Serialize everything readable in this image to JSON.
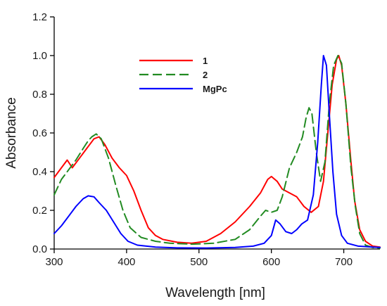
{
  "chart_data": {
    "type": "line",
    "title": "",
    "xlabel": "Wavelength [nm]",
    "ylabel": "Absorbance",
    "xlim": [
      300,
      750
    ],
    "ylim": [
      0,
      1.2
    ],
    "xticks": [
      300,
      400,
      500,
      600,
      700
    ],
    "yticks": [
      0.0,
      0.2,
      0.4,
      0.6,
      0.8,
      1.0,
      1.2
    ],
    "xtick_labels": [
      "300",
      "400",
      "500",
      "600",
      "700"
    ],
    "ytick_labels": [
      "0.0",
      "0.2",
      "0.4",
      "0.6",
      "0.8",
      "1.0",
      "1.2"
    ],
    "grid": false,
    "legend_position": "top-center",
    "series": [
      {
        "name": "1",
        "color": "#ff0000",
        "dash": "solid",
        "points": [
          [
            300,
            0.37
          ],
          [
            310,
            0.42
          ],
          [
            318,
            0.46
          ],
          [
            325,
            0.42
          ],
          [
            335,
            0.47
          ],
          [
            345,
            0.52
          ],
          [
            355,
            0.57
          ],
          [
            362,
            0.58
          ],
          [
            370,
            0.54
          ],
          [
            380,
            0.47
          ],
          [
            390,
            0.42
          ],
          [
            400,
            0.38
          ],
          [
            410,
            0.3
          ],
          [
            420,
            0.2
          ],
          [
            430,
            0.11
          ],
          [
            440,
            0.07
          ],
          [
            450,
            0.05
          ],
          [
            470,
            0.035
          ],
          [
            490,
            0.03
          ],
          [
            510,
            0.04
          ],
          [
            530,
            0.08
          ],
          [
            550,
            0.14
          ],
          [
            570,
            0.22
          ],
          [
            585,
            0.29
          ],
          [
            595,
            0.36
          ],
          [
            600,
            0.375
          ],
          [
            608,
            0.35
          ],
          [
            615,
            0.31
          ],
          [
            625,
            0.29
          ],
          [
            635,
            0.27
          ],
          [
            645,
            0.22
          ],
          [
            655,
            0.19
          ],
          [
            665,
            0.22
          ],
          [
            672,
            0.35
          ],
          [
            678,
            0.6
          ],
          [
            684,
            0.85
          ],
          [
            690,
            0.98
          ],
          [
            693,
            1.0
          ],
          [
            697,
            0.95
          ],
          [
            703,
            0.75
          ],
          [
            710,
            0.45
          ],
          [
            715,
            0.25
          ],
          [
            722,
            0.1
          ],
          [
            730,
            0.04
          ],
          [
            740,
            0.015
          ],
          [
            750,
            0.01
          ]
        ]
      },
      {
        "name": "2",
        "color": "#228b22",
        "dash": "dashed",
        "points": [
          [
            300,
            0.28
          ],
          [
            310,
            0.36
          ],
          [
            320,
            0.41
          ],
          [
            330,
            0.46
          ],
          [
            340,
            0.52
          ],
          [
            347,
            0.56
          ],
          [
            352,
            0.58
          ],
          [
            358,
            0.595
          ],
          [
            365,
            0.57
          ],
          [
            375,
            0.47
          ],
          [
            385,
            0.33
          ],
          [
            395,
            0.2
          ],
          [
            405,
            0.11
          ],
          [
            420,
            0.06
          ],
          [
            440,
            0.04
          ],
          [
            460,
            0.03
          ],
          [
            490,
            0.025
          ],
          [
            520,
            0.03
          ],
          [
            550,
            0.05
          ],
          [
            570,
            0.1
          ],
          [
            585,
            0.17
          ],
          [
            592,
            0.2
          ],
          [
            600,
            0.19
          ],
          [
            608,
            0.2
          ],
          [
            615,
            0.27
          ],
          [
            625,
            0.42
          ],
          [
            635,
            0.5
          ],
          [
            643,
            0.58
          ],
          [
            648,
            0.68
          ],
          [
            652,
            0.73
          ],
          [
            656,
            0.7
          ],
          [
            662,
            0.5
          ],
          [
            668,
            0.35
          ],
          [
            674,
            0.45
          ],
          [
            680,
            0.75
          ],
          [
            686,
            0.95
          ],
          [
            692,
            1.0
          ],
          [
            697,
            0.96
          ],
          [
            703,
            0.75
          ],
          [
            710,
            0.42
          ],
          [
            716,
            0.22
          ],
          [
            722,
            0.08
          ],
          [
            730,
            0.02
          ],
          [
            740,
            0.008
          ],
          [
            750,
            0.005
          ]
        ]
      },
      {
        "name": "MgPc",
        "color": "#0000ff",
        "dash": "solid",
        "points": [
          [
            300,
            0.08
          ],
          [
            310,
            0.12
          ],
          [
            320,
            0.17
          ],
          [
            330,
            0.22
          ],
          [
            340,
            0.26
          ],
          [
            347,
            0.275
          ],
          [
            355,
            0.27
          ],
          [
            362,
            0.24
          ],
          [
            372,
            0.2
          ],
          [
            382,
            0.14
          ],
          [
            392,
            0.08
          ],
          [
            402,
            0.04
          ],
          [
            415,
            0.02
          ],
          [
            440,
            0.01
          ],
          [
            470,
            0.006
          ],
          [
            510,
            0.005
          ],
          [
            550,
            0.008
          ],
          [
            575,
            0.015
          ],
          [
            590,
            0.03
          ],
          [
            600,
            0.07
          ],
          [
            606,
            0.15
          ],
          [
            612,
            0.13
          ],
          [
            620,
            0.09
          ],
          [
            628,
            0.08
          ],
          [
            635,
            0.1
          ],
          [
            642,
            0.13
          ],
          [
            650,
            0.15
          ],
          [
            658,
            0.28
          ],
          [
            664,
            0.55
          ],
          [
            669,
            0.85
          ],
          [
            672,
            1.0
          ],
          [
            676,
            0.95
          ],
          [
            680,
            0.7
          ],
          [
            685,
            0.4
          ],
          [
            690,
            0.18
          ],
          [
            697,
            0.07
          ],
          [
            705,
            0.03
          ],
          [
            720,
            0.015
          ],
          [
            740,
            0.01
          ],
          [
            750,
            0.008
          ]
        ]
      }
    ]
  }
}
